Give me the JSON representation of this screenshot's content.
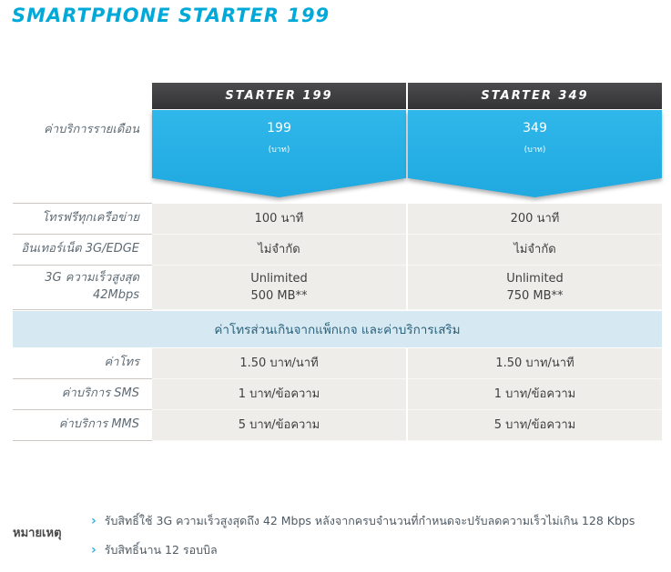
{
  "colors": {
    "accent_cyan": "#29b2e6",
    "header_dark": "#3b3a3c",
    "banner_blue": "#d6e9f3",
    "row_gray": "#efedea"
  },
  "title": "SMARTPHONE STARTER 199",
  "table": {
    "col_headers": [
      "STARTER 199",
      "STARTER 349"
    ],
    "monthly": {
      "label": "ค่าบริการรายเดือน",
      "plans": [
        {
          "amount": "199",
          "unit": "(บาท)"
        },
        {
          "amount": "349",
          "unit": "(บาท)"
        }
      ]
    },
    "rows_top": [
      {
        "label": "โทรฟรีทุกเครือข่าย",
        "values": [
          "100 นาที",
          "200 นาที"
        ]
      },
      {
        "label": "อินเทอร์เน็ต 3G/EDGE",
        "values": [
          "ไม่จำกัด",
          "ไม่จำกัด"
        ]
      },
      {
        "label_line1": "3G ความเร็วสูงสุด",
        "label_line2": "42Mbps",
        "values_line1": [
          "Unlimited",
          "Unlimited"
        ],
        "values_line2": [
          "500 MB**",
          "750 MB**"
        ]
      }
    ],
    "section_banner": "ค่าโทรส่วนเกินจากแพ็กเกจ และค่าบริการเสริม",
    "rows_bottom": [
      {
        "label": "ค่าโทร",
        "values": [
          "1.50 บาท/นาที",
          "1.50 บาท/นาที"
        ]
      },
      {
        "label": "ค่าบริการ SMS",
        "values": [
          "1 บาท/ข้อความ",
          "1 บาท/ข้อความ"
        ]
      },
      {
        "label": "ค่าบริการ MMS",
        "values": [
          "5 บาท/ข้อความ",
          "5 บาท/ข้อความ"
        ]
      }
    ]
  },
  "notes": {
    "label": "หมายเหตุ",
    "bullet_icon": "chevron-right-icon",
    "items": [
      "รับสิทธิ์ใช้ 3G ความเร็วสูงสุดถึง 42 Mbps หลังจากครบจำนวนที่กำหนดจะปรับลดความเร็วไม่เกิน 128 Kbps",
      "รับสิทธิ์นาน 12 รอบบิล"
    ]
  }
}
